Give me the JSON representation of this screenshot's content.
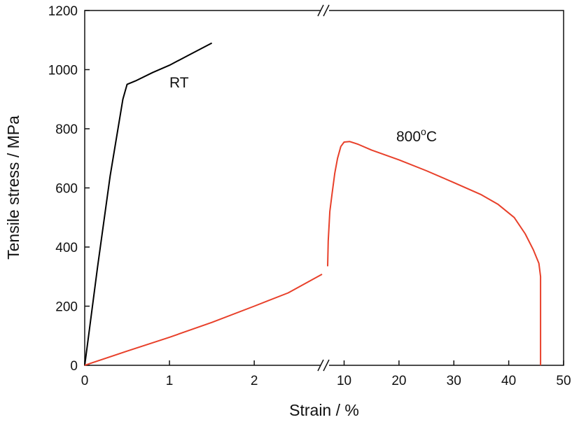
{
  "chart_data": {
    "type": "line",
    "xlabel": "Strain / %",
    "ylabel": "Tensile stress / MPa",
    "ylim": [
      0,
      1200
    ],
    "y_ticks": [
      0,
      200,
      400,
      600,
      800,
      1000,
      1200
    ],
    "x_axis": {
      "broken": true,
      "segment_left": {
        "range": [
          0,
          2.8
        ],
        "ticks": [
          0,
          1,
          2
        ]
      },
      "segment_right": {
        "range": [
          7,
          50
        ],
        "ticks": [
          10,
          20,
          30,
          40,
          50
        ]
      }
    },
    "series": [
      {
        "name": "RT",
        "color": "#000000",
        "segment": "left",
        "points": [
          [
            0,
            0
          ],
          [
            0.05,
            110
          ],
          [
            0.15,
            330
          ],
          [
            0.3,
            640
          ],
          [
            0.45,
            900
          ],
          [
            0.5,
            950
          ],
          [
            0.6,
            962
          ],
          [
            0.8,
            990
          ],
          [
            1.0,
            1015
          ],
          [
            1.2,
            1045
          ],
          [
            1.5,
            1090
          ]
        ]
      },
      {
        "name": "800°C",
        "color": "#e8402a",
        "segments": [
          {
            "segment": "left",
            "points": [
              [
                0,
                0
              ],
              [
                0.5,
                48
              ],
              [
                1.0,
                95
              ],
              [
                1.5,
                145
              ],
              [
                2.0,
                200
              ],
              [
                2.4,
                245
              ],
              [
                2.8,
                308
              ]
            ]
          },
          {
            "segment": "right",
            "points": [
              [
                7.0,
                335
              ],
              [
                7.1,
                420
              ],
              [
                7.4,
                520
              ],
              [
                7.8,
                580
              ],
              [
                8.3,
                650
              ],
              [
                8.8,
                700
              ],
              [
                9.4,
                740
              ],
              [
                10.0,
                755
              ],
              [
                11.0,
                757
              ],
              [
                12.5,
                748
              ],
              [
                15,
                728
              ],
              [
                20,
                695
              ],
              [
                25,
                658
              ],
              [
                30,
                618
              ],
              [
                35,
                577
              ],
              [
                38,
                545
              ],
              [
                41,
                500
              ],
              [
                43,
                445
              ],
              [
                44.5,
                390
              ],
              [
                45.5,
                345
              ],
              [
                45.8,
                300
              ],
              [
                45.8,
                0
              ]
            ]
          }
        ]
      }
    ],
    "annotations": [
      {
        "text": "RT",
        "series": "RT"
      },
      {
        "text": "800",
        "superscript": "o",
        "suffix": "C",
        "series": "800°C"
      }
    ],
    "grid": false,
    "legend": "none"
  }
}
